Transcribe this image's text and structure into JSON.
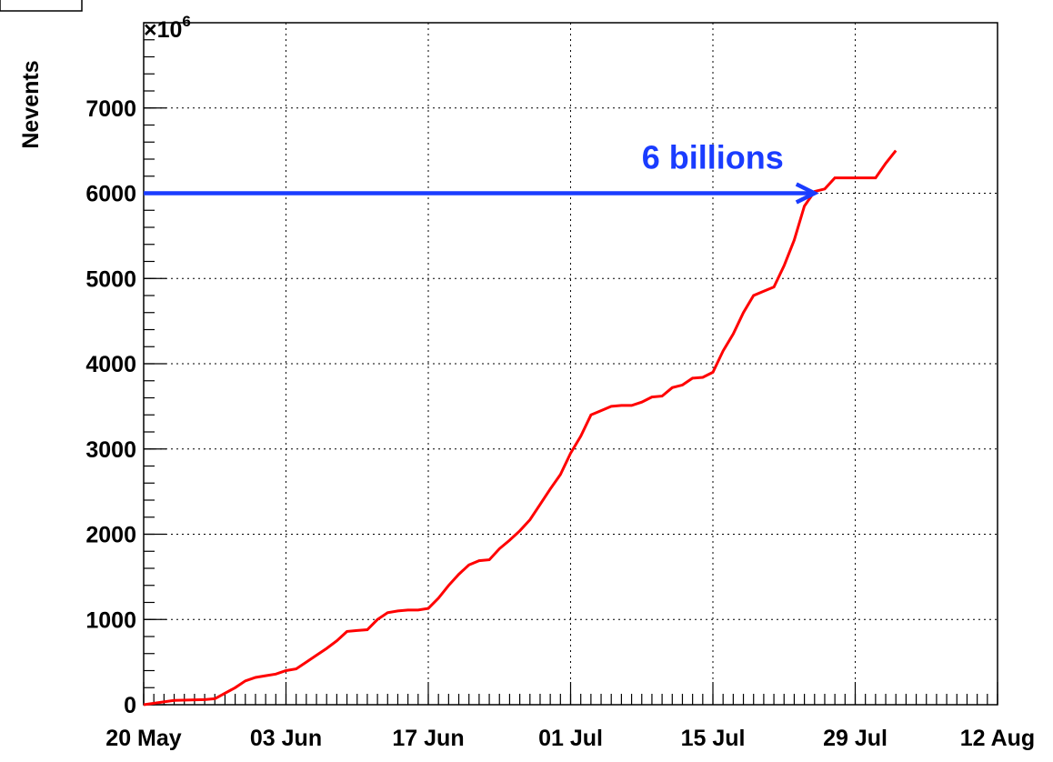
{
  "chart_data": {
    "type": "line",
    "y_label": "Nevents",
    "y_scale_base": "×10",
    "y_scale_exponent": "6",
    "x": [
      "20 May",
      "23 May",
      "26 May",
      "27 May",
      "29 May",
      "30 May",
      "31 May",
      "01 Jun",
      "02 Jun",
      "03 Jun",
      "04 Jun",
      "05 Jun",
      "06 Jun",
      "07 Jun",
      "08 Jun",
      "09 Jun",
      "10 Jun",
      "11 Jun",
      "12 Jun",
      "13 Jun",
      "14 Jun",
      "15 Jun",
      "16 Jun",
      "17 Jun",
      "18 Jun",
      "19 Jun",
      "20 Jun",
      "21 Jun",
      "22 Jun",
      "23 Jun",
      "24 Jun",
      "25 Jun",
      "26 Jun",
      "27 Jun",
      "28 Jun",
      "29 Jun",
      "30 Jun",
      "01 Jul",
      "02 Jul",
      "03 Jul",
      "04 Jul",
      "05 Jul",
      "06 Jul",
      "07 Jul",
      "08 Jul",
      "09 Jul",
      "10 Jul",
      "11 Jul",
      "12 Jul",
      "13 Jul",
      "14 Jul",
      "15 Jul",
      "16 Jul",
      "17 Jul",
      "18 Jul",
      "19 Jul",
      "20 Jul",
      "21 Jul",
      "22 Jul",
      "23 Jul",
      "24 Jul",
      "25 Jul",
      "26 Jul",
      "27 Jul",
      "28 Jul",
      "29 Jul",
      "30 Jul",
      "31 Jul",
      "01 Aug",
      "02 Aug"
    ],
    "series": [
      {
        "color": "#ff0000",
        "values": [
          0,
          50,
          60,
          70,
          200,
          280,
          320,
          340,
          360,
          400,
          420,
          500,
          580,
          660,
          750,
          860,
          870,
          880,
          1000,
          1080,
          1100,
          1110,
          1110,
          1130,
          1250,
          1400,
          1530,
          1640,
          1690,
          1700,
          1830,
          1930,
          2040,
          2170,
          2350,
          2530,
          2700,
          2950,
          3150,
          3400,
          3450,
          3500,
          3510,
          3510,
          3550,
          3610,
          3620,
          3720,
          3750,
          3830,
          3840,
          3900,
          4150,
          4350,
          4600,
          4800,
          4850,
          4900,
          5150,
          5450,
          5850,
          6020,
          6050,
          6180,
          6180,
          6180,
          6180,
          6180,
          6350,
          6500
        ]
      }
    ],
    "annotation": {
      "text": "6 billions",
      "x": "25 Jul",
      "y": 6000,
      "color": "#1a3cff"
    },
    "xlim": [
      "20 May",
      "12 Aug"
    ],
    "xticks": [
      "20 May",
      "03 Jun",
      "17 Jun",
      "01 Jul",
      "15 Jul",
      "29 Jul",
      "12 Aug"
    ],
    "ylim": [
      0,
      8000
    ],
    "yticks": [
      0,
      1000,
      2000,
      3000,
      4000,
      5000,
      6000,
      7000
    ],
    "grid": true
  }
}
